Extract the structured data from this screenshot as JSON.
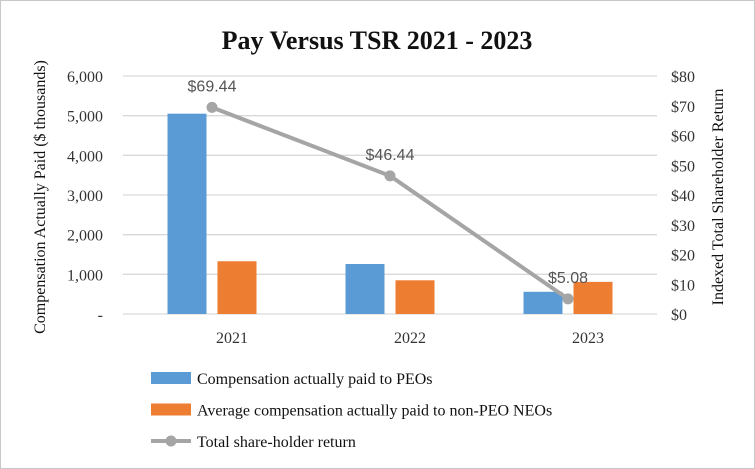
{
  "chart_data": {
    "type": "bar",
    "title": "Pay Versus TSR 2021 - 2023",
    "categories": [
      "2021",
      "2022",
      "2023"
    ],
    "ylabel": "Compensation Actually Paid ($ thousands)",
    "ylabel_right": "Indexed Total Shareholder Return",
    "ylim": [
      0,
      6000
    ],
    "ylim_right": [
      0,
      80
    ],
    "yticks": [
      "-",
      "1,000",
      "2,000",
      "3,000",
      "4,000",
      "5,000",
      "6,000"
    ],
    "yticks_right": [
      "$0",
      "$10",
      "$20",
      "$30",
      "$40",
      "$50",
      "$60",
      "$70",
      "$80"
    ],
    "grid": true,
    "legend_position": "bottom",
    "series": [
      {
        "name": "Compensation actually paid to PEOs",
        "type": "bar",
        "axis": "left",
        "color": "#5b9bd5",
        "values": [
          5050,
          1260,
          560
        ]
      },
      {
        "name": "Average compensation actually paid to non-PEO NEOs",
        "type": "bar",
        "axis": "left",
        "color": "#ed7d31",
        "values": [
          1330,
          850,
          810
        ]
      },
      {
        "name": "Total share-holder return",
        "type": "line",
        "axis": "right",
        "color": "#a5a5a5",
        "values": [
          69.44,
          46.44,
          5.08
        ],
        "labels": [
          "$69.44",
          "$46.44",
          "$5.08"
        ]
      }
    ]
  }
}
